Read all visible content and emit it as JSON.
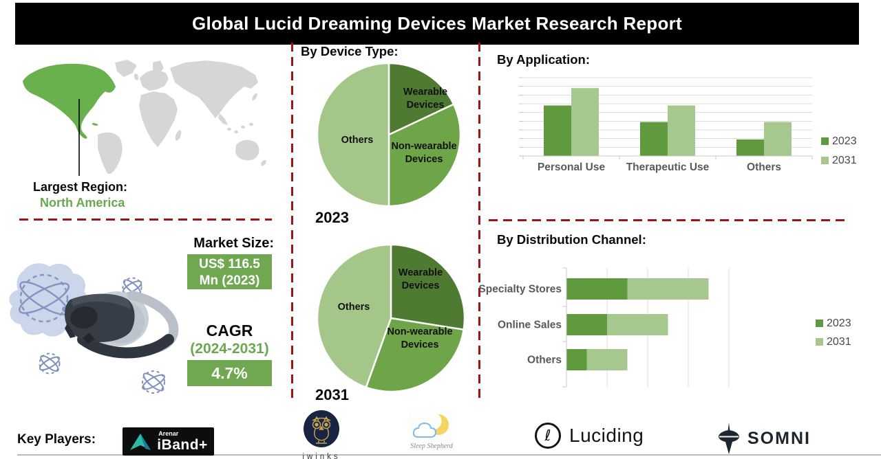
{
  "title": "Global Lucid Dreaming Devices Market Research Report",
  "region": {
    "heading": "Largest Region:",
    "value": "North America"
  },
  "device_type": {
    "heading": "By Device Type:",
    "pie_2023_label": "2023",
    "pie_2031_label": "2031"
  },
  "application": {
    "heading": "By  Application:"
  },
  "distribution": {
    "heading": "By Distribution Channel:"
  },
  "market": {
    "heading": "Market Size:",
    "size_line1": "US$ 116.5",
    "size_line2": "Mn (2023)",
    "cagr_heading": "CAGR",
    "cagr_period": "(2024-2031)",
    "cagr_value": "4.7%"
  },
  "key_players": {
    "heading": "Key Players:",
    "iband_sub": "Arenar",
    "iband_name": "iBand+",
    "iwinks": "iwinks",
    "sleep_shepherd": "Sleep Shepherd",
    "luciding": "Luciding",
    "somni": "SOMNI"
  },
  "colors": {
    "green_dark": "#4e7b31",
    "green_mid": "#6fa549",
    "green_light": "#a4c789",
    "bar_dark": "#5f9a3e",
    "bar_light": "#a6c88e",
    "accent_text_green": "#6aa84f",
    "box_green": "#6fa850",
    "map_green": "#6ab04c",
    "map_gray": "#d6d6d6",
    "divider_red": "#9e1414",
    "chart_text": "#595959"
  },
  "chart_data": [
    {
      "id": "device-type-2023",
      "type": "pie",
      "title": "2023",
      "labels": [
        "Wearable Devices",
        "Non-wearable Devices",
        "Others"
      ],
      "values": [
        18,
        32,
        50
      ],
      "unit": "percent"
    },
    {
      "id": "device-type-2031",
      "type": "pie",
      "title": "2031",
      "labels": [
        "Wearable Devices",
        "Non-wearable Devices",
        "Others"
      ],
      "values": [
        27.5,
        28,
        44.5
      ],
      "unit": "percent"
    },
    {
      "id": "application",
      "type": "bar",
      "title": "By Application:",
      "categories": [
        "Personal Use",
        "Therapeutic Use",
        "Others"
      ],
      "series": [
        {
          "name": "2023",
          "values": [
            5.8,
            3.9,
            1.9
          ]
        },
        {
          "name": "2031",
          "values": [
            7.8,
            5.8,
            3.9
          ]
        }
      ],
      "ylim": [
        0,
        9
      ],
      "grid": true,
      "legend_position": "right"
    },
    {
      "id": "distribution",
      "type": "bar",
      "orientation": "horizontal",
      "stacked": true,
      "title": "By Distribution Channel:",
      "categories": [
        "Specialty Stores",
        "Online Sales",
        "Others"
      ],
      "series": [
        {
          "name": "2023",
          "values": [
            1.5,
            1.0,
            0.5
          ]
        },
        {
          "name": "2031",
          "values": [
            2.0,
            1.5,
            1.0
          ]
        }
      ],
      "xlim": [
        0,
        4
      ],
      "grid": true,
      "legend_position": "right"
    }
  ]
}
